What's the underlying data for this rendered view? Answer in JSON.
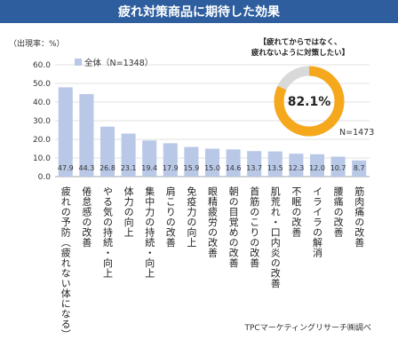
{
  "title": "疲れ対策商品に期待した効果",
  "ylabel": "（出現率：%）",
  "legend_label": "全体（N=1348）",
  "donut": {
    "note_line1": "【疲れてからではなく、",
    "note_line2": "疲れないように対策したい】",
    "value_label": "82.1%",
    "value": 82.1,
    "n_label": "N=1473"
  },
  "source": "TPCマーケティングリサーチ㈱調べ",
  "colors": {
    "banner": "#2e5e9e",
    "bar": "#b8c8e6",
    "grid": "#d8d8d8",
    "donut_fill": "#f5a81c",
    "donut_rest": "#d9d9d9"
  },
  "chart_data": {
    "type": "bar",
    "title": "疲れ対策商品に期待した効果",
    "ylabel": "（出現率：%）",
    "ylim": [
      0,
      60
    ],
    "yticks": [
      "0.0",
      "10.0",
      "20.0",
      "30.0",
      "40.0",
      "50.0",
      "60.0"
    ],
    "grid": true,
    "legend": "top-left",
    "categories": [
      "疲れの予防（疲れない体になる）",
      "倦怠感の改善",
      "やる気の持続・向上",
      "体力の向上",
      "集中力の持続・向上",
      "肩こりの改善",
      "免疫力の向上",
      "眼精疲労の改善",
      "朝の目覚めの改善",
      "首筋のこりの改善",
      "肌荒れ・口内炎の改善",
      "不眠の改善",
      "イライラの解消",
      "腰痛の改善",
      "筋肉痛の改善"
    ],
    "series": [
      {
        "name": "全体（N=1348）",
        "values": [
          47.9,
          44.3,
          26.8,
          23.1,
          19.4,
          17.9,
          15.9,
          15.0,
          14.6,
          13.7,
          13.5,
          12.3,
          12.0,
          10.7,
          8.7
        ],
        "labels": [
          "47.9",
          "44.3",
          "26.8",
          "23.1",
          "19.4",
          "17.9",
          "15.9",
          "15.0",
          "14.6",
          "13.7",
          "13.5",
          "12.3",
          "12.0",
          "10.7",
          "8.7"
        ]
      }
    ]
  }
}
